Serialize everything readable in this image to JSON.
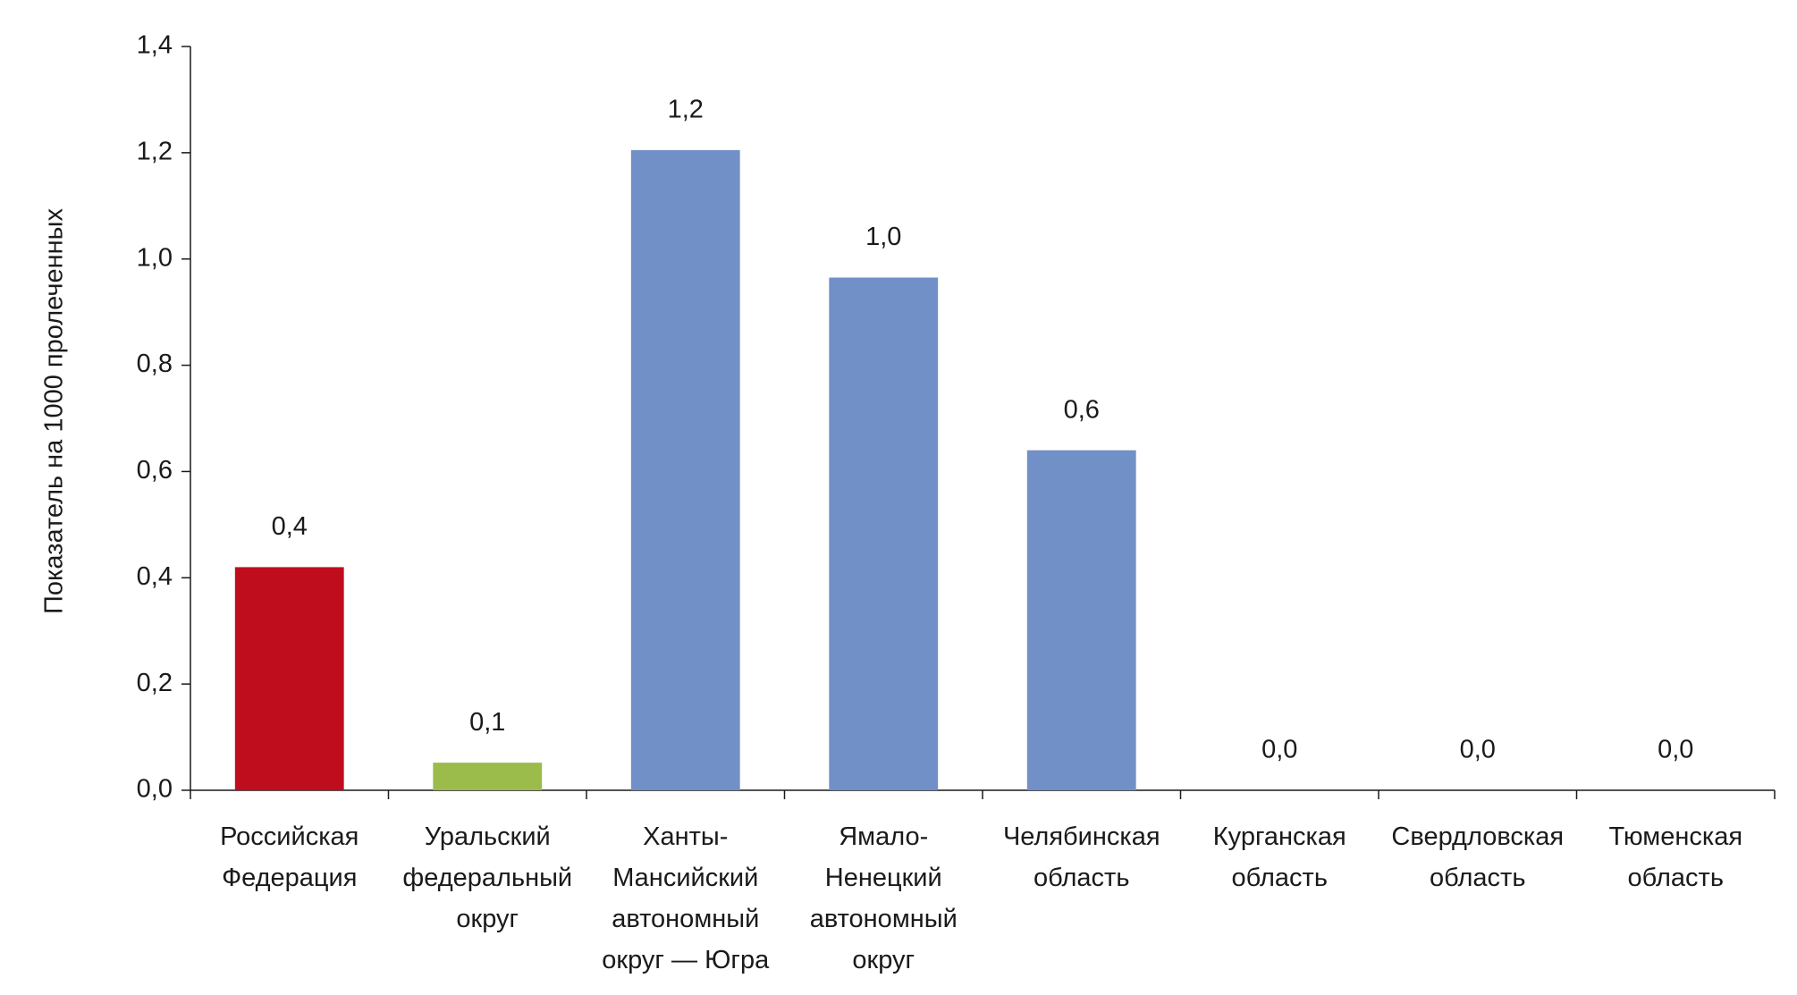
{
  "chart_data": {
    "type": "bar",
    "y_label": "Показатель на 1000 пролеченных",
    "categories": [
      [
        "Российская",
        "Федерация"
      ],
      [
        "Уральский",
        "федеральный",
        "округ"
      ],
      [
        "Ханты-",
        "Мансийский",
        "автономный",
        "округ — Югра"
      ],
      [
        "Ямало-",
        "Ненецкий",
        "автономный",
        "округ"
      ],
      [
        "Челябинская",
        "область"
      ],
      [
        "Курганская",
        "область"
      ],
      [
        "Свердловская",
        "область"
      ],
      [
        "Тюменская",
        "область"
      ]
    ],
    "values": [
      0.42,
      0.052,
      1.205,
      0.965,
      0.64,
      0,
      0,
      0
    ],
    "value_labels": [
      "0,4",
      "0,1",
      "1,2",
      "1,0",
      "0,6",
      "0,0",
      "0,0",
      "0,0"
    ],
    "colors": [
      "#c00d1e",
      "#9bbb4a",
      "#7190c8",
      "#7190c8",
      "#7190c8",
      "#7190c8",
      "#7190c8",
      "#7190c8"
    ],
    "ylim": [
      0,
      1.4
    ],
    "yticks": [
      {
        "value": 0,
        "label": "0,0"
      },
      {
        "value": 0.2,
        "label": "0,2"
      },
      {
        "value": 0.4,
        "label": "0,4"
      },
      {
        "value": 0.6,
        "label": "0,6"
      },
      {
        "value": 0.8,
        "label": "0,8"
      },
      {
        "value": 1.0,
        "label": "1,0"
      },
      {
        "value": 1.2,
        "label": "1,2"
      },
      {
        "value": 1.4,
        "label": "1,4"
      }
    ]
  }
}
